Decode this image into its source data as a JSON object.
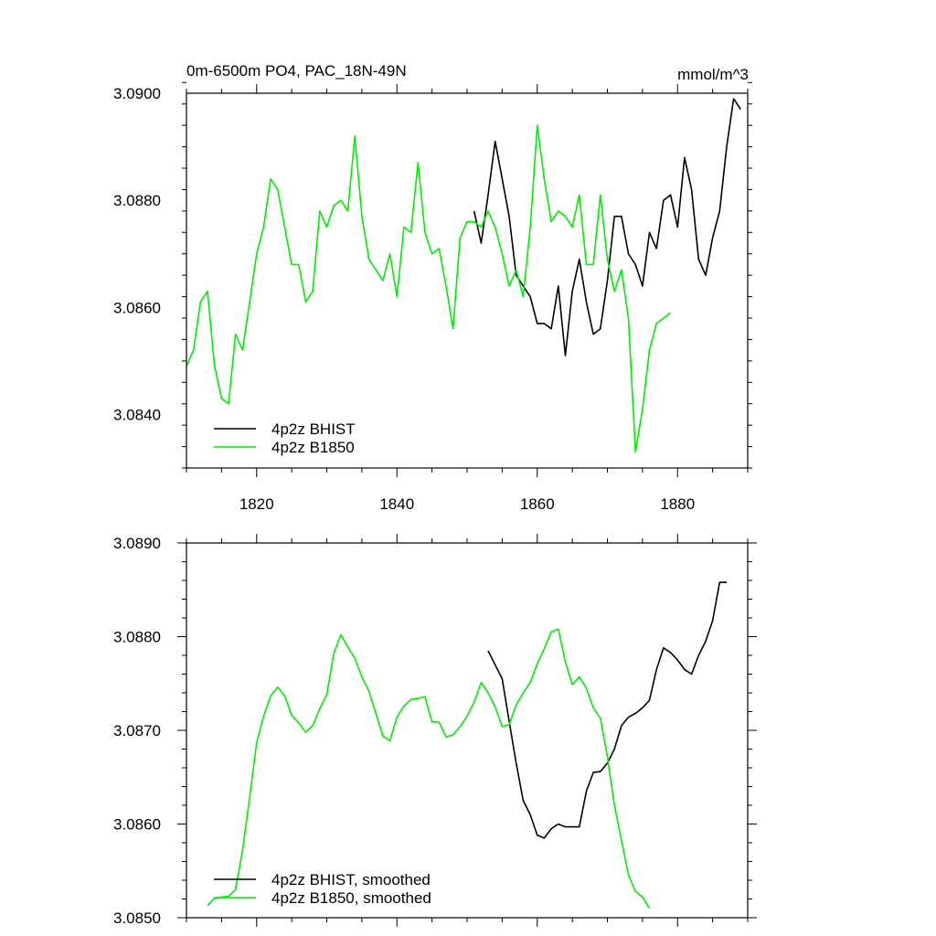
{
  "chart_data": [
    {
      "type": "line",
      "title": "0m-6500m PO4, PAC_18N-49N",
      "units": "mmol/m^3",
      "xlim": [
        1810,
        1890
      ],
      "ylim": [
        3.083,
        3.09
      ],
      "xticks": [
        1820,
        1840,
        1860,
        1880
      ],
      "yticks": [
        3.084,
        3.086,
        3.088,
        3.09
      ],
      "ytick_labels": [
        "3.0840",
        "3.0860",
        "3.0880",
        "3.0900"
      ],
      "xtick_labels": [
        "1820",
        "1840",
        "1860",
        "1880"
      ],
      "legend_position": "bottom-left",
      "series": [
        {
          "name": "4p2z BHIST",
          "color": "#000000",
          "x": [
            1851,
            1852,
            1853,
            1854,
            1855,
            1856,
            1857,
            1858,
            1859,
            1860,
            1861,
            1862,
            1863,
            1864,
            1865,
            1866,
            1867,
            1868,
            1869,
            1870,
            1871,
            1872,
            1873,
            1874,
            1875,
            1876,
            1877,
            1878,
            1879,
            1880,
            1881,
            1882,
            1883,
            1884,
            1885,
            1886,
            1887,
            1888,
            1889
          ],
          "y": [
            3.0878,
            3.0872,
            3.0881,
            3.0891,
            3.0884,
            3.0877,
            3.0866,
            3.0864,
            3.0862,
            3.0857,
            3.0857,
            3.0856,
            3.0864,
            3.0851,
            3.0863,
            3.0869,
            3.0861,
            3.0855,
            3.0856,
            3.0865,
            3.0877,
            3.0877,
            3.087,
            3.0868,
            3.0864,
            3.0874,
            3.0871,
            3.088,
            3.0881,
            3.0875,
            3.0888,
            3.0882,
            3.0869,
            3.0866,
            3.0873,
            3.0878,
            3.089,
            3.0899,
            3.0897
          ]
        },
        {
          "name": "4p2z B1850",
          "color": "#00ee00",
          "x": [
            1810,
            1811,
            1812,
            1813,
            1814,
            1815,
            1816,
            1817,
            1818,
            1819,
            1820,
            1821,
            1822,
            1823,
            1824,
            1825,
            1826,
            1827,
            1828,
            1829,
            1830,
            1831,
            1832,
            1833,
            1834,
            1835,
            1836,
            1837,
            1838,
            1839,
            1840,
            1841,
            1842,
            1843,
            1844,
            1845,
            1846,
            1847,
            1848,
            1849,
            1850,
            1851,
            1852,
            1853,
            1854,
            1855,
            1856,
            1857,
            1858,
            1859,
            1860,
            1861,
            1862,
            1863,
            1864,
            1865,
            1866,
            1867,
            1868,
            1869,
            1870,
            1871,
            1872,
            1873,
            1874,
            1875,
            1876,
            1877,
            1878,
            1879
          ],
          "y": [
            3.0849,
            3.0852,
            3.0861,
            3.0863,
            3.0849,
            3.0843,
            3.0842,
            3.0855,
            3.0852,
            3.0861,
            3.087,
            3.0875,
            3.0884,
            3.0882,
            3.0875,
            3.0868,
            3.0868,
            3.0861,
            3.0863,
            3.0878,
            3.0875,
            3.0879,
            3.088,
            3.0878,
            3.0892,
            3.0877,
            3.0869,
            3.0867,
            3.0865,
            3.087,
            3.0862,
            3.0875,
            3.0874,
            3.0887,
            3.0874,
            3.087,
            3.0871,
            3.0864,
            3.0856,
            3.0873,
            3.0876,
            3.0876,
            3.0875,
            3.0878,
            3.0875,
            3.087,
            3.0864,
            3.0867,
            3.0862,
            3.0875,
            3.0894,
            3.0884,
            3.0876,
            3.0878,
            3.0877,
            3.0875,
            3.0881,
            3.0868,
            3.0868,
            3.0881,
            3.0869,
            3.0863,
            3.0867,
            3.0858,
            3.0833,
            3.0841,
            3.0852,
            3.0857,
            3.0858,
            3.0859
          ]
        }
      ]
    },
    {
      "type": "line",
      "title": "",
      "xlim": [
        1810,
        1890
      ],
      "ylim": [
        3.085,
        3.089
      ],
      "xticks": [
        1820,
        1840,
        1860,
        1880
      ],
      "yticks": [
        3.085,
        3.086,
        3.087,
        3.088,
        3.089
      ],
      "ytick_labels": [
        "3.0850",
        "3.0860",
        "3.0870",
        "3.0880",
        "3.0890"
      ],
      "legend_position": "bottom-left",
      "series": [
        {
          "name": "4p2z BHIST, smoothed",
          "color": "#000000",
          "x": [
            1853,
            1854,
            1855,
            1856,
            1857,
            1858,
            1859,
            1860,
            1861,
            1862,
            1863,
            1864,
            1865,
            1866,
            1867,
            1868,
            1869,
            1870,
            1871,
            1872,
            1873,
            1874,
            1875,
            1876,
            1877,
            1878,
            1879,
            1880,
            1881,
            1882,
            1883,
            1884,
            1885,
            1886,
            1887
          ],
          "y": [
            3.08785,
            3.0877,
            3.08755,
            3.0871,
            3.08665,
            3.08625,
            3.0861,
            3.08588,
            3.08585,
            3.08595,
            3.086,
            3.08597,
            3.08597,
            3.08597,
            3.08635,
            3.08655,
            3.08656,
            3.08665,
            3.0868,
            3.08705,
            3.08714,
            3.08718,
            3.08724,
            3.08732,
            3.08765,
            3.08788,
            3.08783,
            3.08775,
            3.08765,
            3.0876,
            3.0878,
            3.08795,
            3.08817,
            3.08858,
            3.08858
          ]
        },
        {
          "name": "4p2z B1850, smoothed",
          "color": "#00ee00",
          "x": [
            1813,
            1814,
            1815,
            1816,
            1817,
            1818,
            1819,
            1820,
            1821,
            1822,
            1823,
            1824,
            1825,
            1826,
            1827,
            1828,
            1829,
            1830,
            1831,
            1832,
            1833,
            1834,
            1835,
            1836,
            1837,
            1838,
            1839,
            1840,
            1841,
            1842,
            1843,
            1844,
            1845,
            1846,
            1847,
            1848,
            1849,
            1850,
            1851,
            1852,
            1853,
            1854,
            1855,
            1856,
            1857,
            1858,
            1859,
            1860,
            1861,
            1862,
            1863,
            1864,
            1865,
            1866,
            1867,
            1868,
            1869,
            1870,
            1871,
            1872,
            1873,
            1874,
            1875,
            1876
          ],
          "y": [
            3.08513,
            3.08521,
            3.08522,
            3.08523,
            3.0853,
            3.08572,
            3.08628,
            3.08687,
            3.08715,
            3.08737,
            3.08746,
            3.08737,
            3.08716,
            3.08708,
            3.08698,
            3.08705,
            3.08723,
            3.08738,
            3.08782,
            3.08802,
            3.08789,
            3.08777,
            3.08757,
            3.08742,
            3.08718,
            3.08694,
            3.08689,
            3.08714,
            3.08726,
            3.08733,
            3.08734,
            3.08736,
            3.08709,
            3.08709,
            3.08693,
            3.08695,
            3.08704,
            3.08715,
            3.0873,
            3.08751,
            3.0874,
            3.08725,
            3.08704,
            3.08706,
            3.08727,
            3.0874,
            3.08751,
            3.08771,
            3.08787,
            3.08805,
            3.08808,
            3.08773,
            3.08749,
            3.08757,
            3.08745,
            3.08724,
            3.08713,
            3.08672,
            3.0862,
            3.08582,
            3.08546,
            3.08528,
            3.08522,
            3.0851
          ]
        }
      ]
    }
  ]
}
